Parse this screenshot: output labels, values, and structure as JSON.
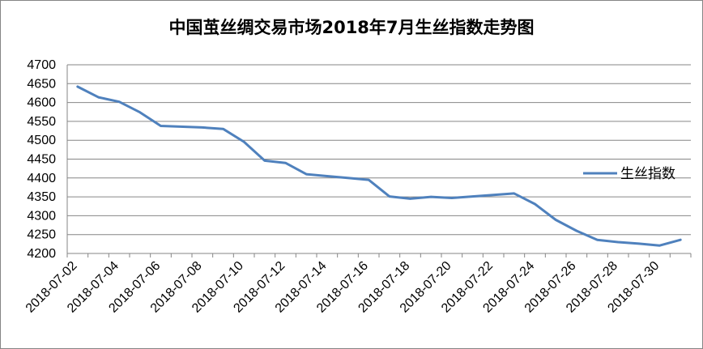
{
  "chart_data": {
    "type": "line",
    "title": "中国茧丝绸交易市场2018年7月生丝指数走势图",
    "xlabel": "",
    "ylabel": "",
    "ylim": [
      4200,
      4700
    ],
    "yticks": [
      4200,
      4250,
      4300,
      4350,
      4400,
      4450,
      4500,
      4550,
      4600,
      4650,
      4700
    ],
    "xticks": [
      "2018-07-02",
      "2018-07-04",
      "2018-07-06",
      "2018-07-08",
      "2018-07-10",
      "2018-07-12",
      "2018-07-14",
      "2018-07-16",
      "2018-07-18",
      "2018-07-20",
      "2018-07-22",
      "2018-07-24",
      "2018-07-26",
      "2018-07-28",
      "2018-07-30"
    ],
    "x_start": "2018-07-02",
    "x_end": "2018-07-31",
    "grid": true,
    "legend_position": "right",
    "series": [
      {
        "name": "生丝指数",
        "color": "#4F81BD",
        "points": [
          [
            "2018-07-02",
            4642
          ],
          [
            "2018-07-03",
            4614
          ],
          [
            "2018-07-04",
            4602
          ],
          [
            "2018-07-05",
            4574
          ],
          [
            "2018-07-06",
            4538
          ],
          [
            "2018-07-08",
            4534
          ],
          [
            "2018-07-09",
            4530
          ],
          [
            "2018-07-10",
            4496
          ],
          [
            "2018-07-11",
            4446
          ],
          [
            "2018-07-12",
            4440
          ],
          [
            "2018-07-13",
            4410
          ],
          [
            "2018-07-14",
            4405
          ],
          [
            "2018-07-15",
            4400
          ],
          [
            "2018-07-16",
            4395
          ],
          [
            "2018-07-17",
            4351
          ],
          [
            "2018-07-18",
            4345
          ],
          [
            "2018-07-19",
            4350
          ],
          [
            "2018-07-20",
            4347
          ],
          [
            "2018-07-21",
            4351
          ],
          [
            "2018-07-22",
            4355
          ],
          [
            "2018-07-23",
            4359
          ],
          [
            "2018-07-24",
            4331
          ],
          [
            "2018-07-25",
            4289
          ],
          [
            "2018-07-26",
            4260
          ],
          [
            "2018-07-27",
            4236
          ],
          [
            "2018-07-28",
            4230
          ],
          [
            "2018-07-29",
            4226
          ],
          [
            "2018-07-30",
            4221
          ],
          [
            "2018-07-31",
            4236
          ]
        ]
      }
    ]
  }
}
